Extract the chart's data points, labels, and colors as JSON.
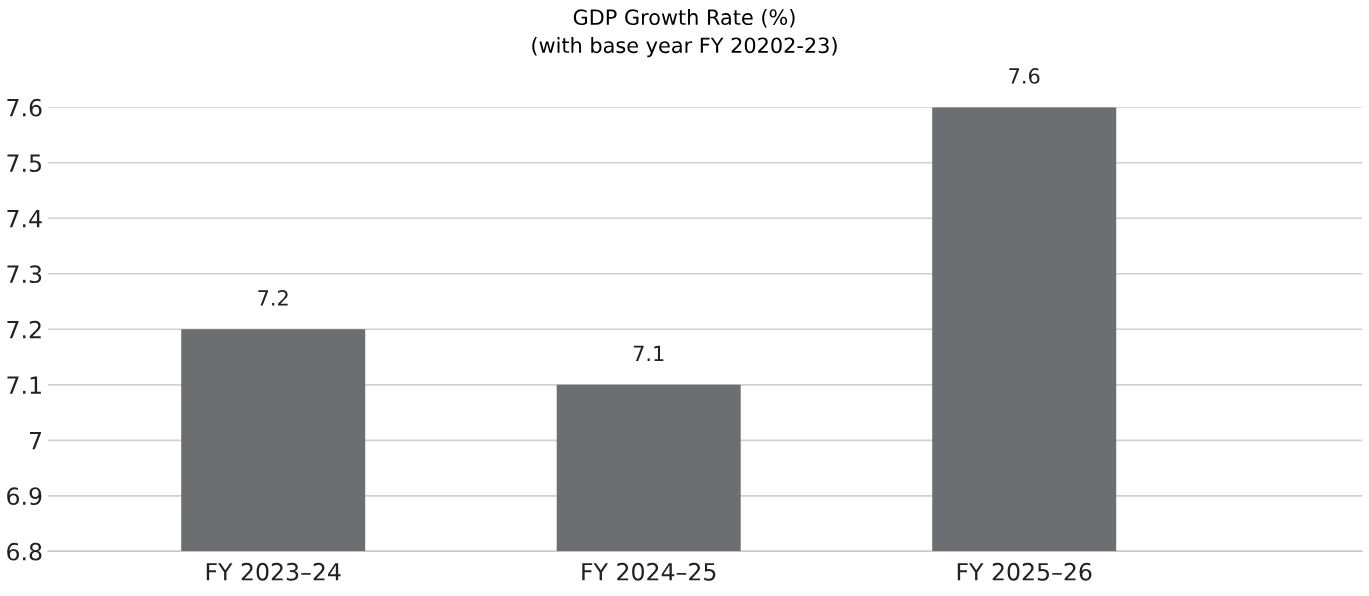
{
  "chart_data": {
    "type": "bar",
    "title": "GDP Growth Rate (%)\n(with base year FY 20202-23)",
    "categories": [
      "FY 2023–24",
      "FY 2024–25",
      "FY 2025–26"
    ],
    "values": [
      7.2,
      7.1,
      7.6
    ],
    "color": "#6d6e71",
    "ylim": [
      6.8,
      7.6
    ],
    "yticks": [
      6.8,
      6.9,
      7,
      7.1,
      7.2,
      7.3,
      7.4,
      7.5,
      7.6
    ],
    "grid": "y",
    "data_labels": true,
    "legend": false
  }
}
